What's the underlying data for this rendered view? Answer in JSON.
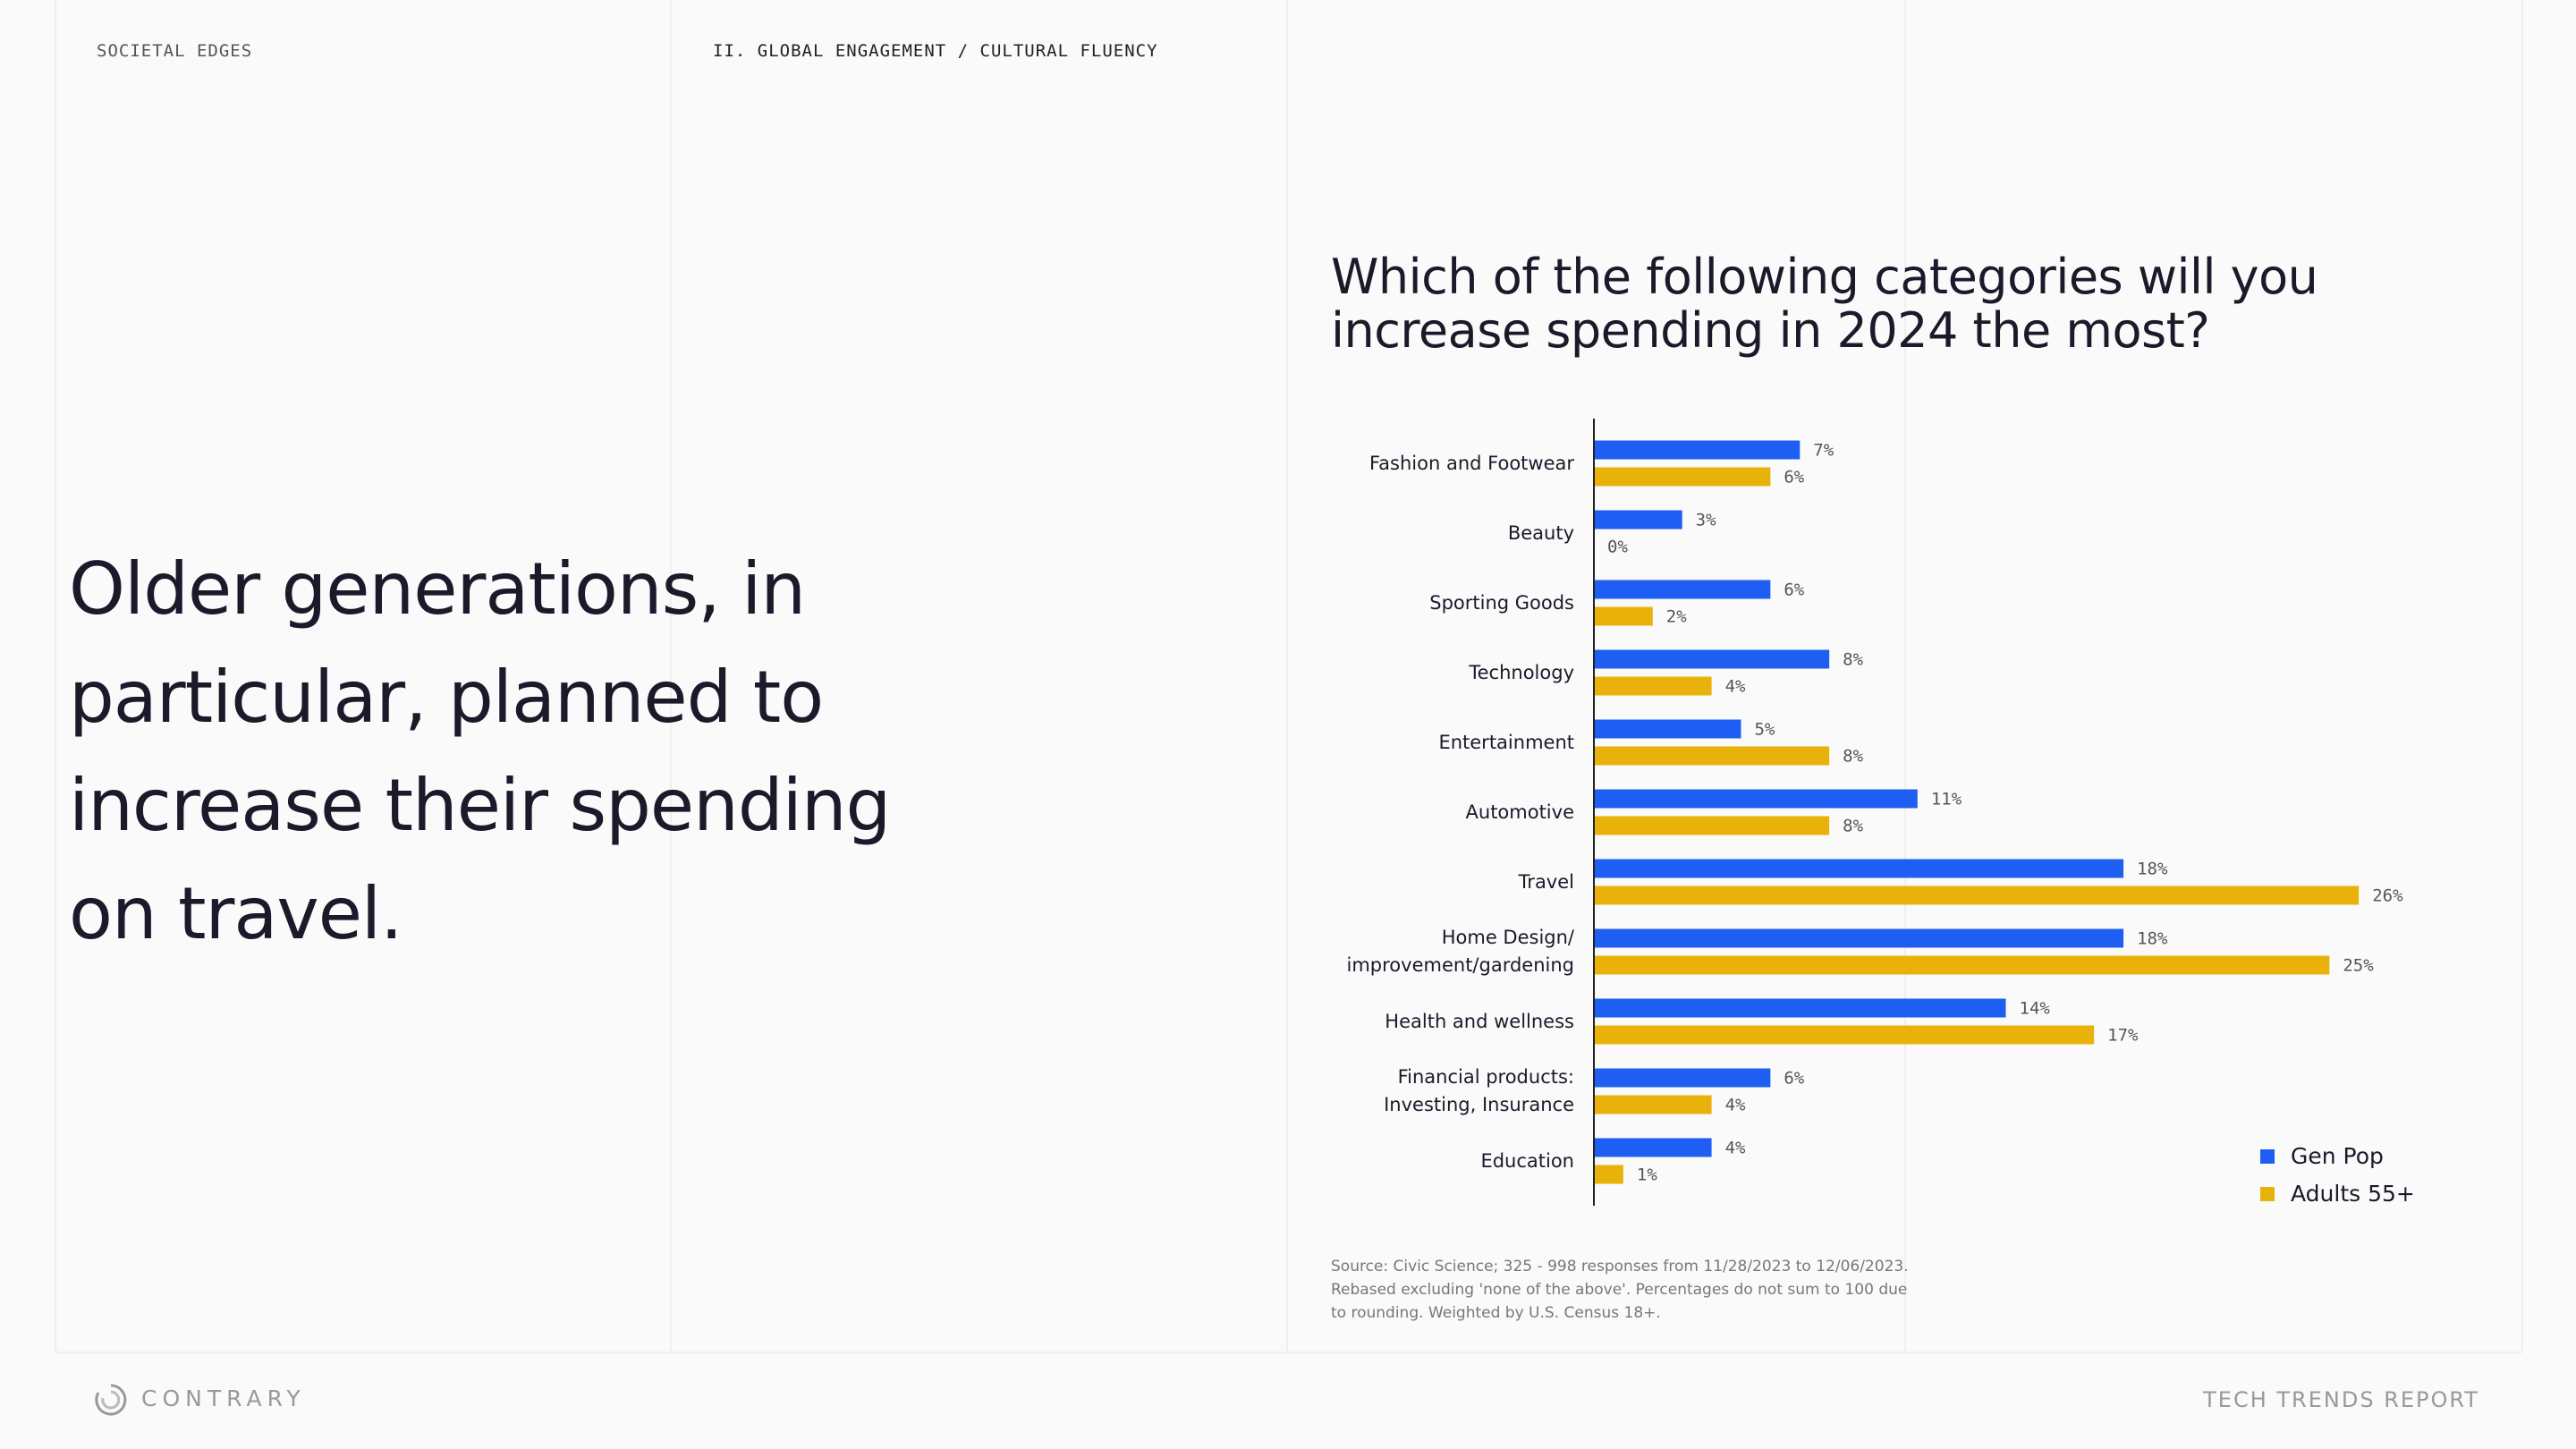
{
  "header": {
    "section": "SOCIETAL EDGES",
    "chapter": "II. GLOBAL ENGAGEMENT / CULTURAL FLUENCY"
  },
  "headline": [
    "Older generations, in",
    "particular, planned to",
    "increase their spending",
    "on travel."
  ],
  "chart_data": {
    "type": "hbar",
    "title": "Which of the following categories will you increase spending in 2024 the most?",
    "categories": [
      "Fashion and Footwear",
      "Beauty",
      "Sporting Goods",
      "Technology",
      "Entertainment",
      "Automotive",
      "Travel",
      "Home Design/ improvement/gardening",
      "Health and wellness",
      "Financial products: Investing, Insurance",
      "Education"
    ],
    "series": [
      {
        "name": "Gen Pop",
        "color": "#1f5ef2",
        "values": [
          7,
          3,
          6,
          8,
          5,
          11,
          18,
          18,
          14,
          6,
          4
        ],
        "value_labels": [
          "7%",
          "3%",
          "6%",
          "8%",
          "5%",
          "11%",
          "18%",
          "18%",
          "14%",
          "6%",
          "4%"
        ]
      },
      {
        "name": "Adults 55+",
        "color": "#e8b20a",
        "values": [
          6,
          0,
          2,
          4,
          8,
          8,
          26,
          25,
          17,
          4,
          1
        ],
        "value_labels": [
          "6%",
          "0%",
          "2%",
          "4%",
          "8%",
          "8%",
          "26%",
          "25%",
          "17%",
          "4%",
          "1%"
        ]
      }
    ],
    "xlim": [
      0,
      28
    ],
    "legend": "lower right",
    "source": [
      "Source: Civic Science; 325 - 998 responses from 11/28/2023 to 12/06/2023.",
      "Rebased excluding 'none of the above'. Percentages do not sum to 100 due",
      "to rounding. Weighted by U.S. Census 18+."
    ]
  },
  "footer": {
    "brand": "CONTRARY",
    "report": "TECH TRENDS REPORT"
  }
}
